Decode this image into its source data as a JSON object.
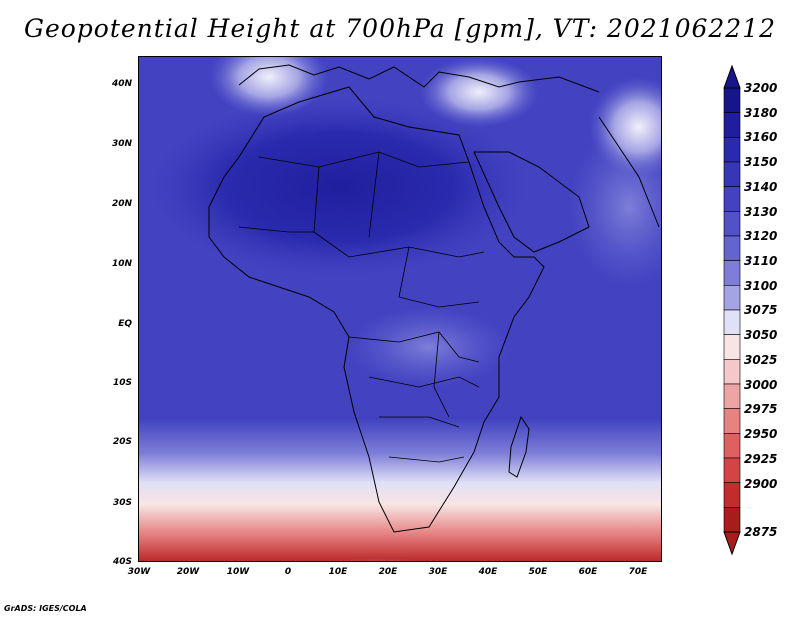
{
  "title": "Geopotential Height at 700hPa [gpm], VT: 2021062212",
  "lat_labels": [
    "40N",
    "30N",
    "20N",
    "10N",
    "EQ",
    "10S",
    "20S",
    "30S",
    "40S"
  ],
  "lon_labels": [
    "30W",
    "20W",
    "10W",
    "0",
    "10E",
    "20E",
    "30E",
    "40E",
    "50E",
    "60E",
    "70E"
  ],
  "colorbar": {
    "levels": [
      "3200",
      "3180",
      "3160",
      "3150",
      "3140",
      "3130",
      "3120",
      "3110",
      "3100",
      "3075",
      "3050",
      "3025",
      "3000",
      "2975",
      "2950",
      "2925",
      "2900",
      "2875"
    ],
    "colors": [
      "#16168a",
      "#1f1f9e",
      "#2a2aae",
      "#3636b8",
      "#4343c2",
      "#5252c8",
      "#6464d0",
      "#7e7ed9",
      "#a4a4e4",
      "#e0e0f6",
      "#f8e4e4",
      "#f4c8c8",
      "#eda4a4",
      "#e68282",
      "#df6060",
      "#d44444",
      "#c22c2c",
      "#a81c1c"
    ]
  },
  "map": {
    "lat_range": [
      -40,
      45
    ],
    "lon_range": [
      -30,
      75
    ],
    "colors": {
      "land_border": "#000000",
      "high": "#2a2aae",
      "low": "#c22c2c"
    }
  },
  "credit": "GrADS: IGES/COLA"
}
